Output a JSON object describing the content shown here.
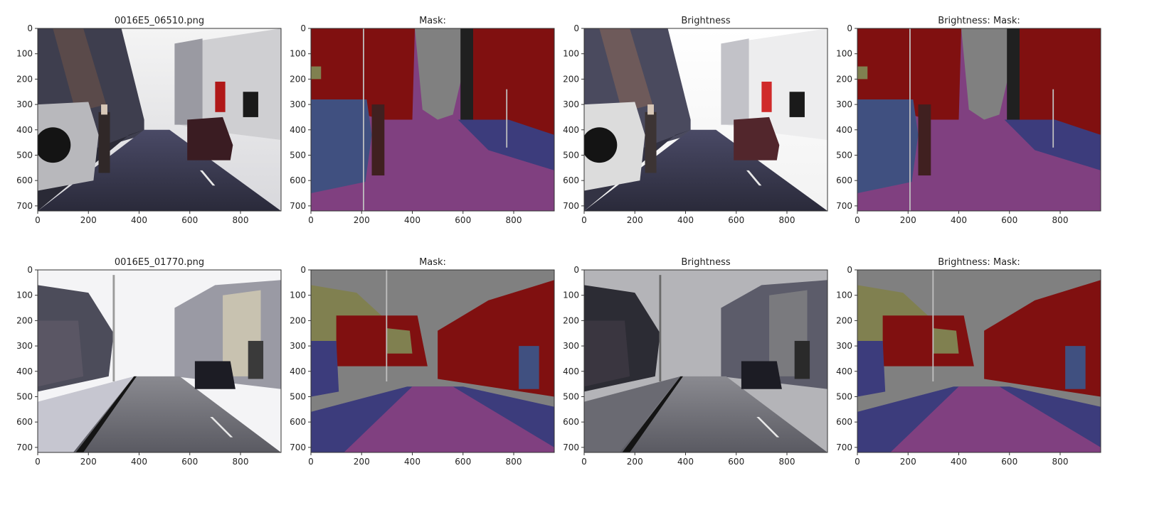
{
  "figure": {
    "rows": [
      {
        "panels": [
          {
            "title": "0016E5_06510.png",
            "kind": "street-photo",
            "tone": "normal"
          },
          {
            "title": "Mask:",
            "kind": "mask-a"
          },
          {
            "title": "Brightness",
            "kind": "street-photo",
            "tone": "bright"
          },
          {
            "title": "Brightness: Mask:",
            "kind": "mask-a"
          }
        ]
      },
      {
        "panels": [
          {
            "title": "0016E5_01770.png",
            "kind": "street-photo-2",
            "tone": "normal"
          },
          {
            "title": "Mask:",
            "kind": "mask-b"
          },
          {
            "title": "Brightness",
            "kind": "street-photo-2",
            "tone": "dark"
          },
          {
            "title": "Brightness: Mask:",
            "kind": "mask-b"
          }
        ]
      }
    ]
  },
  "chart_data": {
    "type": "image-grid",
    "grid": {
      "rows": 2,
      "cols": 4
    },
    "x_ticks": [
      "0",
      "200",
      "400",
      "600",
      "800"
    ],
    "x_tick_values": [
      0,
      200,
      400,
      600,
      800
    ],
    "y_ticks": [
      "0",
      "100",
      "200",
      "300",
      "400",
      "500",
      "600",
      "700"
    ],
    "y_tick_values": [
      0,
      100,
      200,
      300,
      400,
      500,
      600,
      700
    ],
    "xlim": [
      0,
      960
    ],
    "ylim": [
      720,
      0
    ],
    "image_size": {
      "width": 960,
      "height": 720
    },
    "mask_colors": {
      "building": "#801010",
      "sky": "#808080",
      "road": "#804080",
      "sidewalk": "#3c3c7c",
      "pedestrian": "#402020",
      "car": "#405080",
      "tree": "#808050",
      "pole": "#c0c0c0",
      "sign": "#808040",
      "void": "#202020"
    }
  }
}
